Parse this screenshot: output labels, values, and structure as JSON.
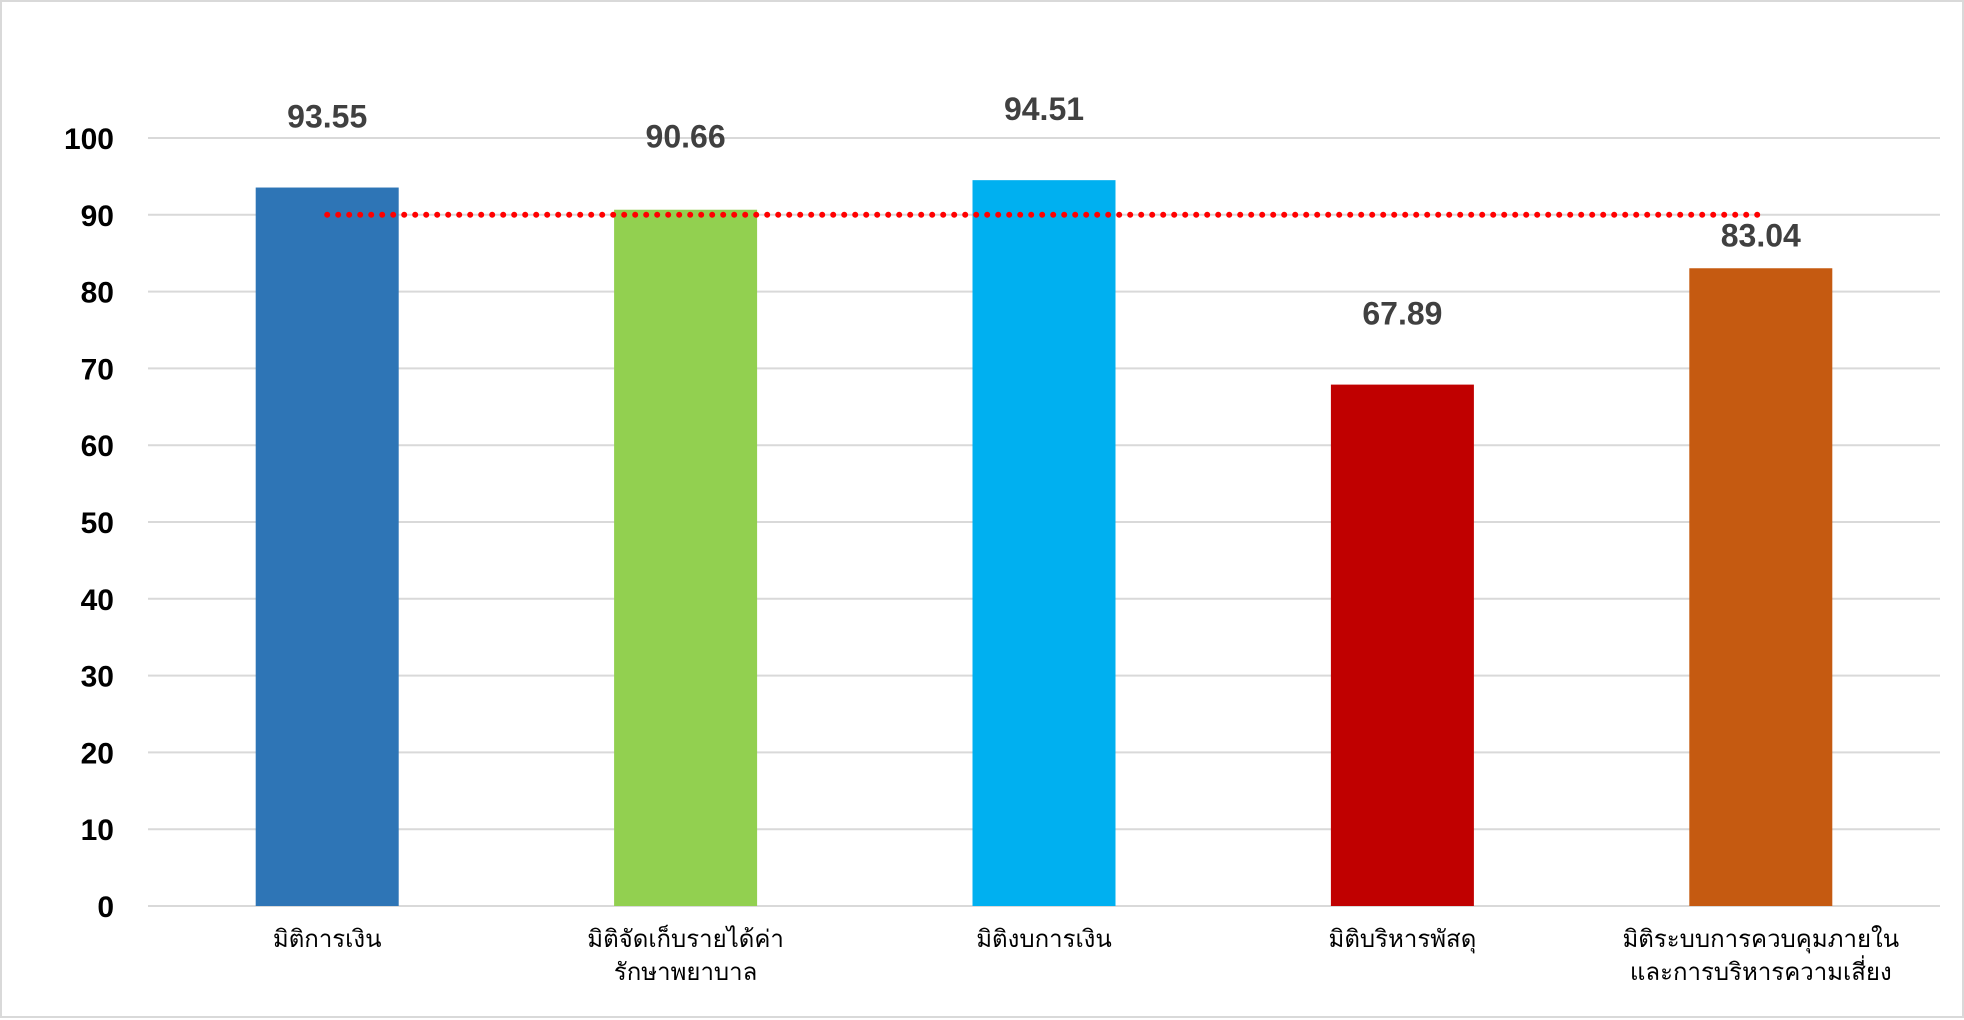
{
  "chart_data": {
    "type": "bar",
    "categories": [
      [
        "มิติการเงิน"
      ],
      [
        "มิติจัดเก็บรายได้ค่า",
        "รักษาพยาบาล"
      ],
      [
        "มิติงบการเงิน"
      ],
      [
        "มิติบริหารพัสดุ"
      ],
      [
        "มิติระบบการควบคุมภายใน",
        "และการบริหารความเสี่ยง"
      ]
    ],
    "values": [
      93.55,
      90.66,
      94.51,
      67.89,
      83.04
    ],
    "data_labels": [
      "93.55",
      "90.66",
      "94.51",
      "67.89",
      "83.04"
    ],
    "colors": [
      "#2e75b6",
      "#92d050",
      "#00b0f0",
      "#c00000",
      "#c55a11"
    ],
    "ylim": [
      0,
      100
    ],
    "yticks": [
      0,
      10,
      20,
      30,
      40,
      50,
      60,
      70,
      80,
      90,
      100
    ],
    "reference_line": {
      "value": 90,
      "color": "#ff0000",
      "style": "dotted"
    },
    "grid": true,
    "gridline_color": "#d9d9d9",
    "title": "",
    "xlabel": "",
    "ylabel": ""
  }
}
